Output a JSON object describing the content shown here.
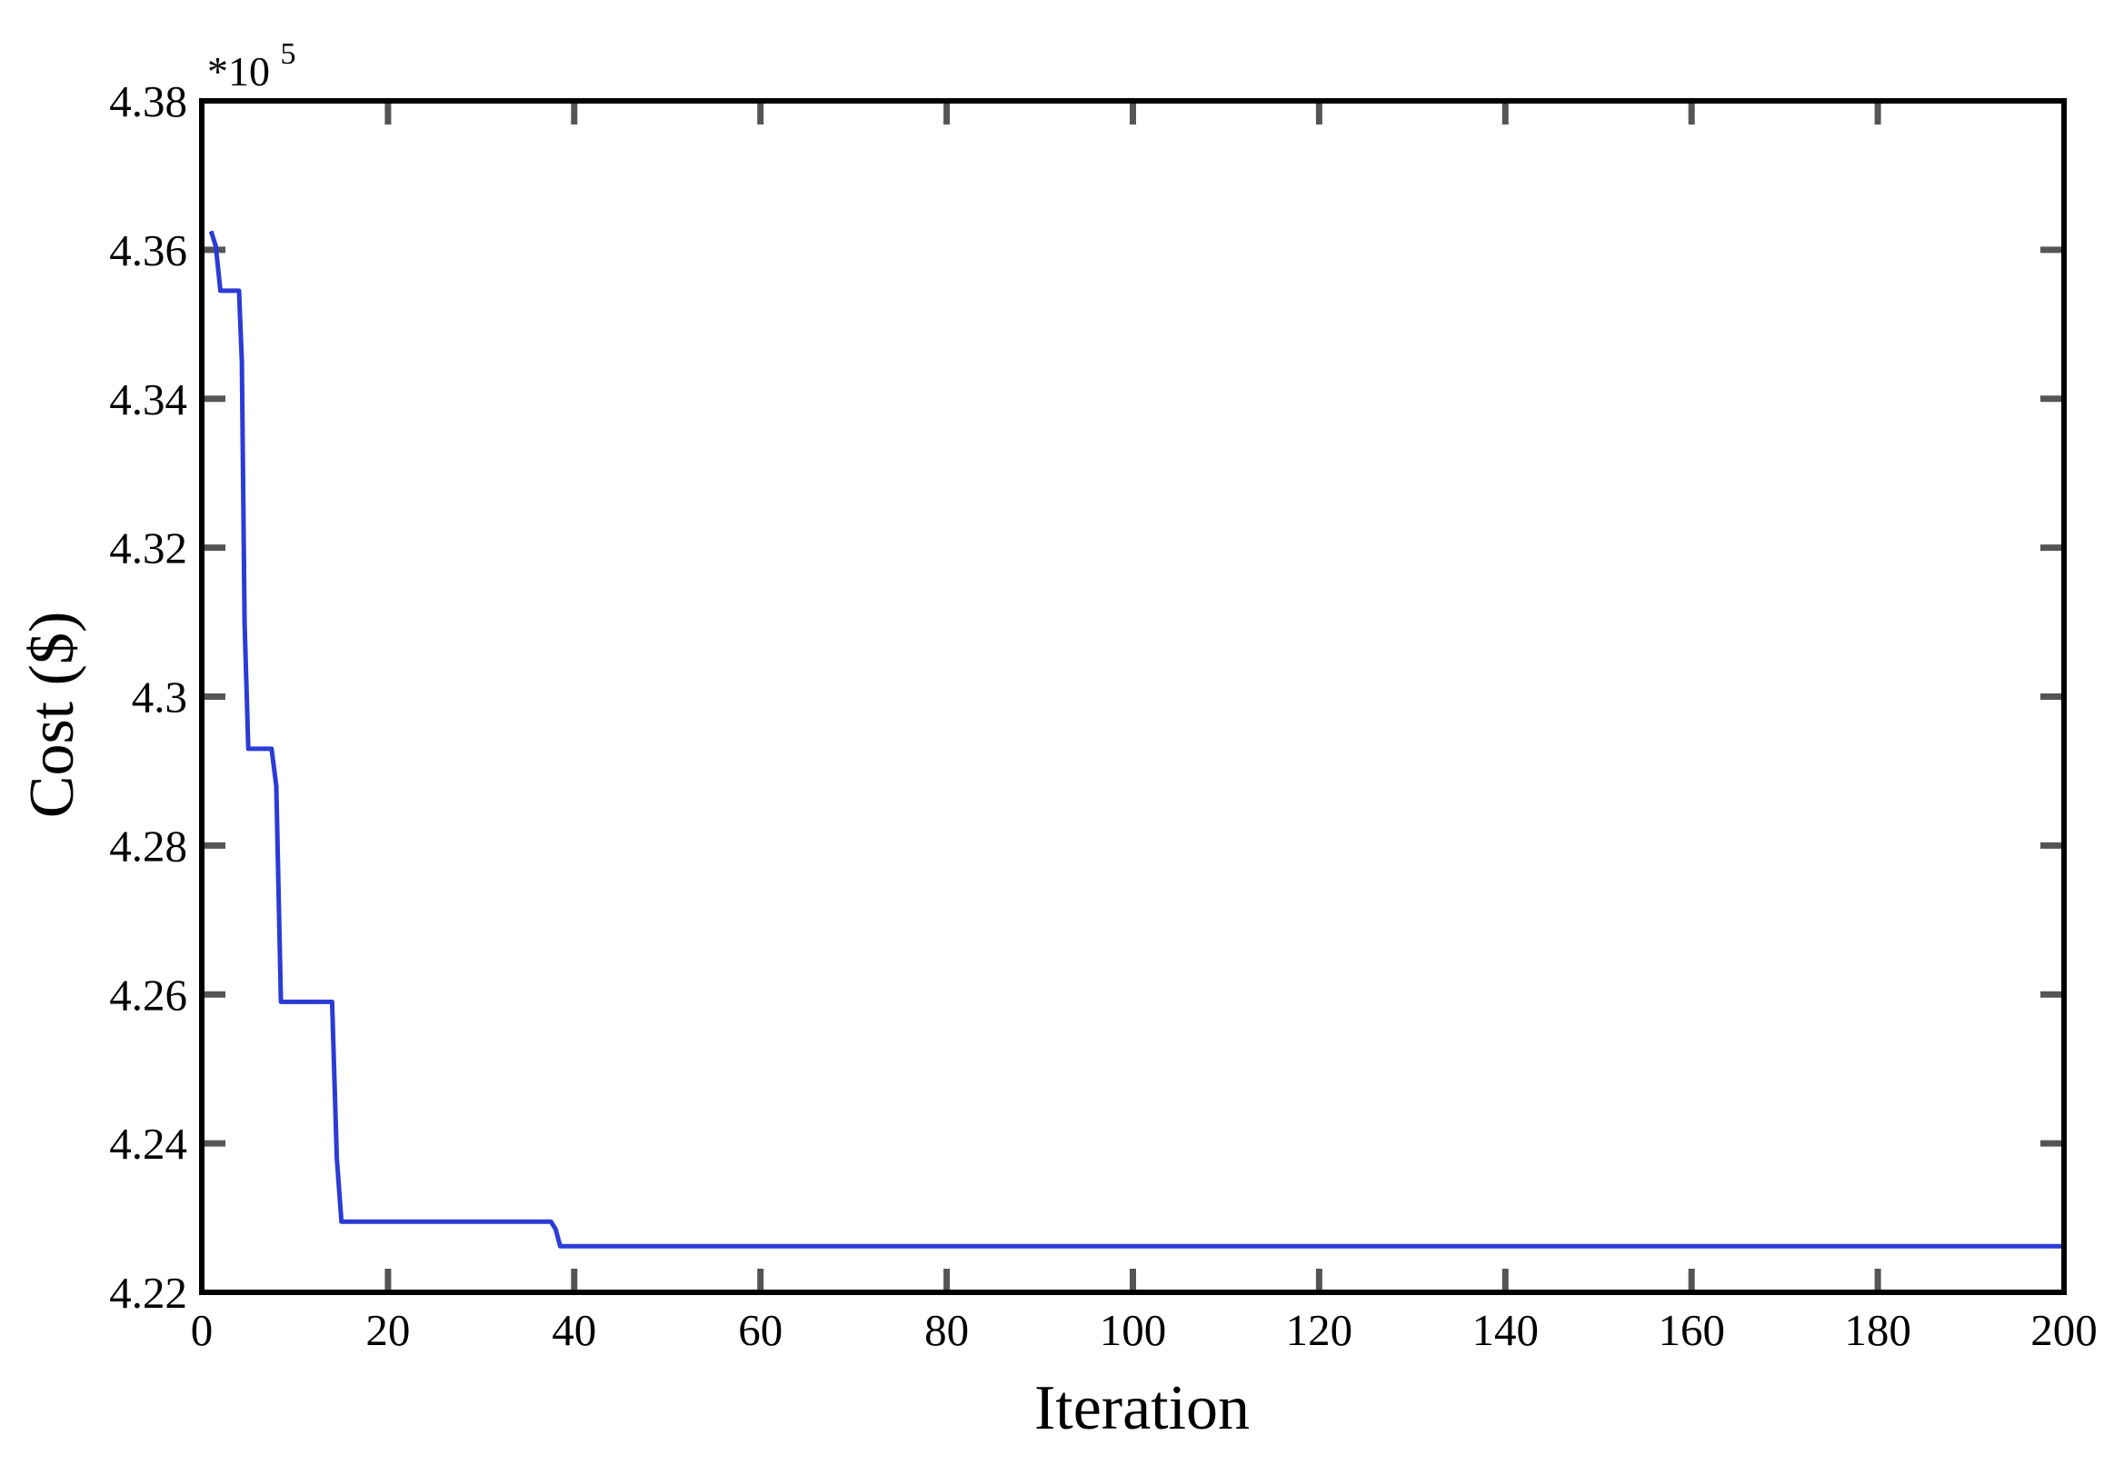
{
  "chart_data": {
    "type": "line",
    "title": "",
    "xlabel": "Iteration",
    "ylabel": "Cost ($)",
    "y_multiplier_label": {
      "base": "*10",
      "exponent": "5"
    },
    "xlim": [
      0,
      200
    ],
    "ylim": [
      4.22,
      4.38
    ],
    "x_ticks": [
      0,
      20,
      40,
      60,
      80,
      100,
      120,
      140,
      160,
      180,
      200
    ],
    "x_tick_labels": [
      "0",
      "20",
      "40",
      "60",
      "80",
      "100",
      "120",
      "140",
      "160",
      "180",
      "200"
    ],
    "y_ticks": [
      4.22,
      4.24,
      4.26,
      4.28,
      4.3,
      4.32,
      4.34,
      4.36,
      4.38
    ],
    "y_tick_labels": [
      "4.22",
      "4.24",
      "4.26",
      "4.28",
      "4.3",
      "4.32",
      "4.34",
      "4.36",
      "4.38"
    ],
    "grid": false,
    "legend": "none",
    "series": [
      {
        "color": "#2b3bd6",
        "x": [
          1,
          1.5,
          2,
          4,
          4.3,
          4.6,
          5,
          7.5,
          8,
          8.5,
          14,
          14.5,
          15,
          37.5,
          38,
          38.5,
          39,
          128,
          128,
          200
        ],
        "y": [
          4.3625,
          4.3605,
          4.3545,
          4.3545,
          4.345,
          4.31,
          4.293,
          4.293,
          4.288,
          4.259,
          4.259,
          4.238,
          4.2295,
          4.2295,
          4.2285,
          4.2262,
          4.2262,
          4.2262,
          4.2262,
          4.2262
        ]
      }
    ]
  }
}
